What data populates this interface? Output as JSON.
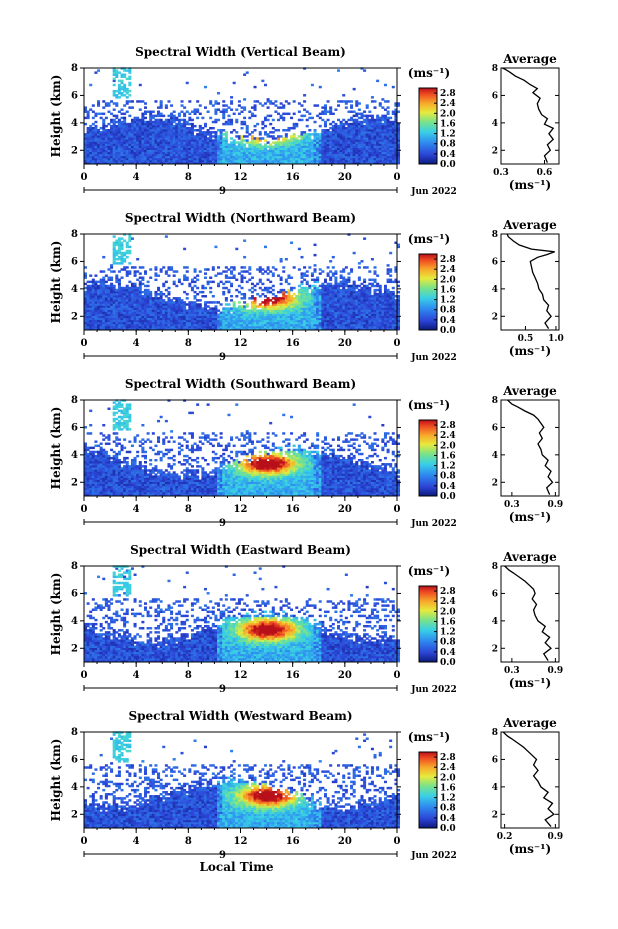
{
  "chart_data": [
    {
      "type": "heatmap",
      "title": "Spectral Width (Vertical Beam)",
      "ylabel": "Height (km)",
      "yticks": [
        "2",
        "4",
        "6",
        "8"
      ],
      "ylim": [
        1,
        8
      ],
      "xticks": [
        "0",
        "4",
        "8",
        "12",
        "16",
        "20",
        "0"
      ],
      "xlim": [
        0,
        24
      ],
      "day_label": "9",
      "date_label": "Jun 2022",
      "colorbar": {
        "unit": "(ms⁻¹)",
        "ticks": [
          "0.0",
          "0.4",
          "0.8",
          "1.2",
          "1.6",
          "2.0",
          "2.4",
          "2.8"
        ],
        "range": [
          0,
          3.0
        ]
      },
      "profile": {
        "title": "Average",
        "unit": "(ms⁻¹)",
        "xticks": [
          "0.3",
          "0.6"
        ],
        "xlim": [
          0.3,
          0.7
        ],
        "yticks": [
          "2",
          "4",
          "6",
          "8"
        ],
        "ylim": [
          1,
          8
        ],
        "x": [
          0.62,
          0.6,
          0.64,
          0.62,
          0.66,
          0.63,
          0.66,
          0.6,
          0.62,
          0.58,
          0.56,
          0.55,
          0.57,
          0.52,
          0.55,
          0.5,
          0.46,
          0.4,
          0.36,
          0.33,
          0.31
        ],
        "y": [
          1.1,
          1.6,
          2.0,
          2.4,
          2.8,
          3.2,
          3.6,
          3.9,
          4.3,
          4.6,
          5.0,
          5.4,
          5.8,
          6.2,
          6.5,
          6.8,
          7.1,
          7.4,
          7.7,
          7.9,
          8.0
        ]
      }
    },
    {
      "type": "heatmap",
      "title": "Spectral Width (Northward Beam)",
      "ylabel": "Height (km)",
      "yticks": [
        "2",
        "4",
        "6",
        "8"
      ],
      "ylim": [
        1,
        8
      ],
      "xticks": [
        "0",
        "4",
        "8",
        "12",
        "16",
        "20",
        "0"
      ],
      "xlim": [
        0,
        24
      ],
      "day_label": "9",
      "date_label": "Jun 2022",
      "colorbar": {
        "unit": "(ms⁻¹)",
        "ticks": [
          "0.0",
          "0.4",
          "0.8",
          "1.2",
          "1.6",
          "2.0",
          "2.4",
          "2.8"
        ],
        "range": [
          0,
          3.0
        ]
      },
      "profile": {
        "title": "Average",
        "unit": "(ms⁻¹)",
        "xticks": [
          "0.5",
          "1.0"
        ],
        "xlim": [
          0.1,
          1.05
        ],
        "yticks": [
          "2",
          "4",
          "6",
          "8"
        ],
        "ylim": [
          1,
          8
        ],
        "x": [
          0.88,
          0.82,
          0.92,
          0.85,
          0.88,
          0.8,
          0.78,
          0.72,
          0.7,
          0.66,
          0.62,
          0.6,
          0.58,
          0.7,
          0.85,
          0.98,
          0.6,
          0.4,
          0.3,
          0.22,
          0.2
        ],
        "y": [
          1.1,
          1.5,
          2.0,
          2.4,
          2.8,
          3.2,
          3.6,
          4.0,
          4.4,
          4.8,
          5.2,
          5.6,
          6.0,
          6.3,
          6.5,
          6.7,
          6.9,
          7.2,
          7.5,
          7.8,
          8.0
        ]
      }
    },
    {
      "type": "heatmap",
      "title": "Spectral Width (Southward Beam)",
      "ylabel": "Height (km)",
      "yticks": [
        "2",
        "4",
        "6",
        "8"
      ],
      "ylim": [
        1,
        8
      ],
      "xticks": [
        "0",
        "4",
        "8",
        "12",
        "16",
        "20",
        "0"
      ],
      "xlim": [
        0,
        24
      ],
      "day_label": "9",
      "date_label": "Jun 2022",
      "colorbar": {
        "unit": "(ms⁻¹)",
        "ticks": [
          "0.0",
          "0.4",
          "0.8",
          "1.2",
          "1.6",
          "2.0",
          "2.4",
          "2.8"
        ],
        "range": [
          0,
          3.0
        ]
      },
      "profile": {
        "title": "Average",
        "unit": "(ms⁻¹)",
        "xticks": [
          "0.3",
          "0.9"
        ],
        "xlim": [
          0.15,
          0.95
        ],
        "yticks": [
          "2",
          "4",
          "6",
          "8"
        ],
        "ylim": [
          1,
          8
        ],
        "x": [
          0.82,
          0.78,
          0.86,
          0.8,
          0.84,
          0.76,
          0.8,
          0.72,
          0.7,
          0.66,
          0.72,
          0.68,
          0.74,
          0.7,
          0.66,
          0.6,
          0.48,
          0.38,
          0.3,
          0.26,
          0.24
        ],
        "y": [
          1.1,
          1.6,
          2.0,
          2.4,
          2.8,
          3.2,
          3.6,
          4.0,
          4.4,
          4.8,
          5.2,
          5.6,
          6.0,
          6.3,
          6.6,
          6.9,
          7.2,
          7.5,
          7.7,
          7.9,
          8.0
        ]
      }
    },
    {
      "type": "heatmap",
      "title": "Spectral Width (Eastward Beam)",
      "ylabel": "Height (km)",
      "yticks": [
        "2",
        "4",
        "6",
        "8"
      ],
      "ylim": [
        1,
        8
      ],
      "xticks": [
        "0",
        "4",
        "8",
        "12",
        "16",
        "20",
        "0"
      ],
      "xlim": [
        0,
        24
      ],
      "day_label": "9",
      "date_label": "Jun 2022",
      "colorbar": {
        "unit": "(ms⁻¹)",
        "ticks": [
          "0.0",
          "0.4",
          "0.8",
          "1.2",
          "1.6",
          "2.0",
          "2.4",
          "2.8"
        ],
        "range": [
          0,
          3.0
        ]
      },
      "profile": {
        "title": "Average",
        "unit": "(ms⁻¹)",
        "xticks": [
          "0.3",
          "0.9"
        ],
        "xlim": [
          0.15,
          0.95
        ],
        "yticks": [
          "2",
          "4",
          "6",
          "8"
        ],
        "ylim": [
          1,
          8
        ],
        "x": [
          0.8,
          0.74,
          0.84,
          0.76,
          0.82,
          0.72,
          0.76,
          0.66,
          0.62,
          0.6,
          0.64,
          0.58,
          0.62,
          0.6,
          0.54,
          0.48,
          0.4,
          0.32,
          0.26,
          0.22,
          0.2
        ],
        "y": [
          1.1,
          1.6,
          2.0,
          2.4,
          2.8,
          3.2,
          3.6,
          4.0,
          4.4,
          4.8,
          5.2,
          5.6,
          6.0,
          6.3,
          6.6,
          6.9,
          7.2,
          7.5,
          7.7,
          7.9,
          8.0
        ]
      }
    },
    {
      "type": "heatmap",
      "title": "Spectral Width (Westward Beam)",
      "ylabel": "Height (km)",
      "yticks": [
        "2",
        "4",
        "6",
        "8"
      ],
      "ylim": [
        1,
        8
      ],
      "xticks": [
        "0",
        "4",
        "8",
        "12",
        "16",
        "20",
        "0"
      ],
      "xlim": [
        0,
        24
      ],
      "day_label": "9",
      "date_label": "Jun 2022",
      "xlabel": "Local Time",
      "colorbar": {
        "unit": "(ms⁻¹)",
        "ticks": [
          "0.0",
          "0.4",
          "0.8",
          "1.2",
          "1.6",
          "2.0",
          "2.4",
          "2.8"
        ],
        "range": [
          0,
          3.0
        ]
      },
      "profile": {
        "title": "Average",
        "unit": "(ms⁻¹)",
        "xticks": [
          "0.2",
          "0.9"
        ],
        "xlim": [
          0.15,
          0.95
        ],
        "yticks": [
          "2",
          "4",
          "6",
          "8"
        ],
        "ylim": [
          1,
          8
        ],
        "x": [
          0.84,
          0.76,
          0.88,
          0.8,
          0.86,
          0.74,
          0.8,
          0.7,
          0.66,
          0.6,
          0.66,
          0.6,
          0.64,
          0.58,
          0.52,
          0.46,
          0.38,
          0.3,
          0.24,
          0.2,
          0.18
        ],
        "y": [
          1.1,
          1.6,
          2.0,
          2.4,
          2.8,
          3.2,
          3.6,
          4.0,
          4.4,
          4.8,
          5.2,
          5.6,
          6.0,
          6.3,
          6.6,
          6.9,
          7.2,
          7.5,
          7.7,
          7.9,
          8.0
        ]
      }
    }
  ]
}
